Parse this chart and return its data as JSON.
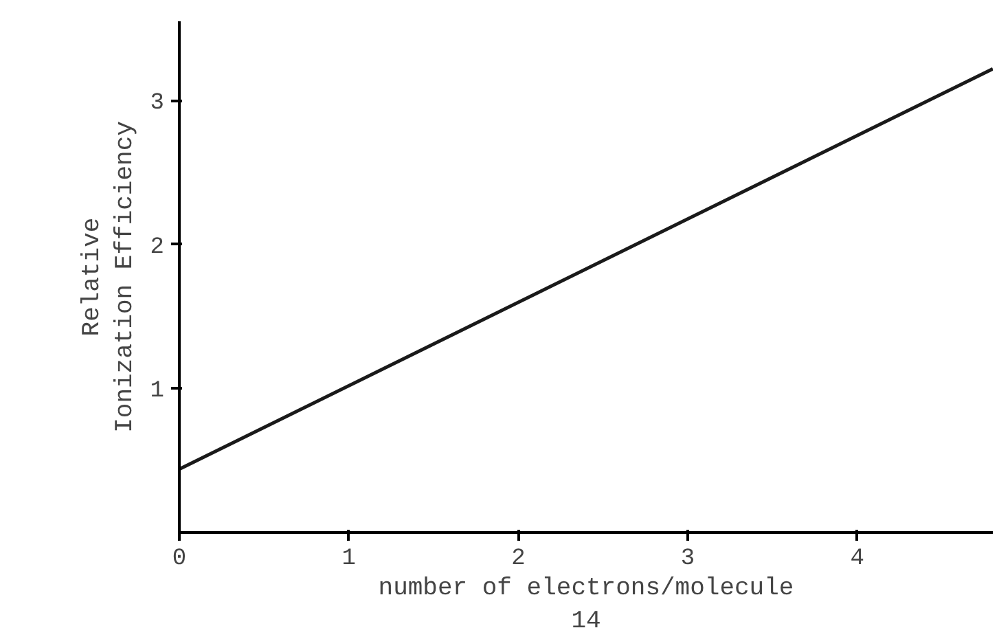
{
  "chart_data": {
    "type": "line",
    "xlabel": "number of electrons/molecule\n14",
    "ylabel": "Relative\nIonization Efficiency",
    "series": [
      {
        "color": "#1a1a1a",
        "x": [
          0,
          4.8
        ],
        "values": [
          0.44,
          3.22
        ]
      }
    ],
    "xlim": [
      0,
      4.8
    ],
    "ylim": [
      0,
      3.55
    ],
    "xticks": [
      0,
      1,
      2,
      3,
      4
    ],
    "yticks": [
      1,
      2,
      3
    ],
    "grid": false
  }
}
